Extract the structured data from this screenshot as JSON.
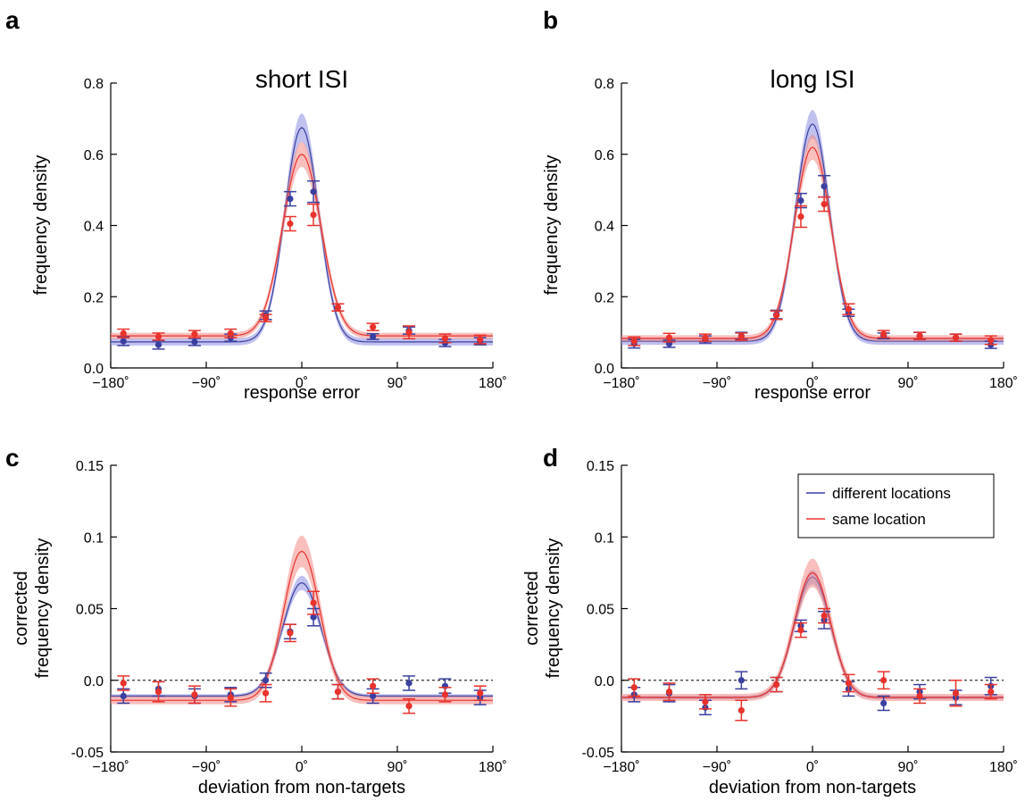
{
  "colors": {
    "blue": "#3a3fa0",
    "red": "#e8322b",
    "blue_band": "#8c8ee0",
    "red_band": "#f28a86"
  },
  "legend": {
    "items": [
      {
        "label": "different locations",
        "color": "#3a3fa0"
      },
      {
        "label": "same location",
        "color": "#e8322b"
      }
    ]
  },
  "x_tick_labels": [
    "−180˚",
    "−90˚",
    "0˚",
    "90˚",
    "180˚"
  ],
  "chart_data": [
    {
      "type": "scatter",
      "panel": "a",
      "title": "short ISI",
      "xlabel": "response error",
      "ylabel": [
        "frequency density"
      ],
      "xlim": [
        -180,
        180
      ],
      "ylim": [
        0,
        0.8
      ],
      "yticks": [
        0,
        0.2,
        0.4,
        0.6,
        0.8
      ],
      "ytick_labels": [
        "0.0",
        "0.2",
        "0.4",
        "0.6",
        "0.8"
      ],
      "x": [
        -168,
        -135,
        -101,
        -67,
        -34,
        -11,
        11,
        34,
        67,
        101,
        135,
        168
      ],
      "series": [
        {
          "name": "different locations",
          "color": "#3a3fa0",
          "values": [
            0.075,
            0.065,
            0.073,
            0.085,
            0.148,
            0.475,
            0.495,
            0.17,
            0.088,
            0.105,
            0.07,
            0.075
          ],
          "errors": [
            0.012,
            0.012,
            0.01,
            0.01,
            0.012,
            0.02,
            0.03,
            0.01,
            0.008,
            0.01,
            0.01,
            0.01
          ],
          "curve": {
            "peak": 0.675,
            "baseline": 0.073,
            "sigma": 16,
            "band": 0.04
          }
        },
        {
          "name": "same location",
          "color": "#e8322b",
          "values": [
            0.097,
            0.088,
            0.095,
            0.097,
            0.14,
            0.405,
            0.43,
            0.17,
            0.115,
            0.1,
            0.083,
            0.08
          ],
          "errors": [
            0.012,
            0.01,
            0.01,
            0.012,
            0.01,
            0.02,
            0.03,
            0.01,
            0.01,
            0.018,
            0.012,
            0.012
          ],
          "curve": {
            "peak": 0.6,
            "baseline": 0.09,
            "sigma": 18,
            "band": 0.035
          }
        }
      ]
    },
    {
      "type": "scatter",
      "panel": "b",
      "title": "long ISI",
      "xlabel": "response error",
      "ylabel": [
        "frequency density"
      ],
      "xlim": [
        -180,
        180
      ],
      "ylim": [
        0,
        0.8
      ],
      "yticks": [
        0,
        0.2,
        0.4,
        0.6,
        0.8
      ],
      "ytick_labels": [
        "0.0",
        "0.2",
        "0.4",
        "0.6",
        "0.8"
      ],
      "x": [
        -168,
        -135,
        -101,
        -67,
        -34,
        -11,
        11,
        34,
        67,
        101,
        135,
        168
      ],
      "series": [
        {
          "name": "different locations",
          "color": "#3a3fa0",
          "values": [
            0.068,
            0.068,
            0.08,
            0.09,
            0.15,
            0.47,
            0.51,
            0.155,
            0.09,
            0.09,
            0.085,
            0.065
          ],
          "errors": [
            0.012,
            0.01,
            0.01,
            0.01,
            0.012,
            0.02,
            0.03,
            0.01,
            0.008,
            0.01,
            0.01,
            0.01
          ],
          "curve": {
            "peak": 0.685,
            "baseline": 0.075,
            "sigma": 16,
            "band": 0.04
          }
        },
        {
          "name": "same location",
          "color": "#e8322b",
          "values": [
            0.075,
            0.085,
            0.085,
            0.088,
            0.148,
            0.425,
            0.46,
            0.165,
            0.095,
            0.09,
            0.085,
            0.078
          ],
          "errors": [
            0.012,
            0.012,
            0.01,
            0.01,
            0.012,
            0.03,
            0.02,
            0.015,
            0.01,
            0.01,
            0.01,
            0.012
          ],
          "curve": {
            "peak": 0.62,
            "baseline": 0.083,
            "sigma": 17,
            "band": 0.035
          }
        }
      ]
    },
    {
      "type": "scatter",
      "panel": "c",
      "title": "",
      "xlabel": "deviation from non-targets",
      "ylabel": [
        "corrected",
        "frequency density"
      ],
      "xlim": [
        -180,
        180
      ],
      "ylim": [
        -0.05,
        0.15
      ],
      "yticks": [
        -0.05,
        0,
        0.05,
        0.1,
        0.15
      ],
      "ytick_labels": [
        "-0.05",
        "0.0",
        "0.05",
        "0.1",
        "0.15"
      ],
      "zero_line": true,
      "x": [
        -168,
        -135,
        -101,
        -67,
        -34,
        -11,
        11,
        34,
        67,
        101,
        135,
        168
      ],
      "series": [
        {
          "name": "different locations",
          "color": "#3a3fa0",
          "values": [
            -0.011,
            -0.006,
            -0.011,
            -0.01,
            0.0,
            0.034,
            0.044,
            -0.008,
            -0.011,
            -0.002,
            -0.004,
            -0.012
          ],
          "errors": [
            0.005,
            0.005,
            0.005,
            0.005,
            0.005,
            0.005,
            0.006,
            0.005,
            0.005,
            0.005,
            0.005,
            0.005
          ],
          "curve": {
            "peak": 0.068,
            "baseline": -0.011,
            "sigma": 18,
            "band": 0.005
          }
        },
        {
          "name": "same location",
          "color": "#e8322b",
          "values": [
            -0.002,
            -0.008,
            -0.01,
            -0.012,
            -0.009,
            0.033,
            0.054,
            -0.008,
            -0.004,
            -0.018,
            -0.01,
            -0.009
          ],
          "errors": [
            0.005,
            0.007,
            0.006,
            0.006,
            0.006,
            0.006,
            0.008,
            0.005,
            0.005,
            0.005,
            0.005,
            0.005
          ],
          "curve": {
            "peak": 0.09,
            "baseline": -0.014,
            "sigma": 17,
            "band": 0.011
          }
        }
      ]
    },
    {
      "type": "scatter",
      "panel": "d",
      "title": "",
      "xlabel": "deviation from non-targets",
      "ylabel": [
        "corrected",
        "frequency density"
      ],
      "xlim": [
        -180,
        180
      ],
      "ylim": [
        -0.05,
        0.15
      ],
      "yticks": [
        -0.05,
        0,
        0.05,
        0.1,
        0.15
      ],
      "ytick_labels": [
        "-0.05",
        "0.0",
        "0.05",
        "0.1",
        "0.15"
      ],
      "zero_line": true,
      "legend_position": "top-right",
      "x": [
        -168,
        -135,
        -101,
        -67,
        -34,
        -11,
        11,
        34,
        67,
        101,
        135,
        168
      ],
      "series": [
        {
          "name": "different locations",
          "color": "#3a3fa0",
          "values": [
            -0.01,
            -0.009,
            -0.019,
            0.0,
            -0.003,
            0.038,
            0.042,
            -0.006,
            -0.016,
            -0.008,
            -0.012,
            -0.004
          ],
          "errors": [
            0.005,
            0.006,
            0.005,
            0.006,
            0.005,
            0.004,
            0.006,
            0.005,
            0.005,
            0.005,
            0.005,
            0.006
          ],
          "curve": {
            "peak": 0.072,
            "baseline": -0.012,
            "sigma": 17,
            "band": 0.005
          }
        },
        {
          "name": "same location",
          "color": "#e8322b",
          "values": [
            -0.005,
            -0.008,
            -0.015,
            -0.021,
            -0.003,
            0.035,
            0.045,
            -0.002,
            0.0,
            -0.011,
            -0.009,
            -0.008
          ],
          "errors": [
            0.006,
            0.006,
            0.005,
            0.007,
            0.005,
            0.005,
            0.005,
            0.006,
            0.006,
            0.005,
            0.009,
            0.005
          ],
          "curve": {
            "peak": 0.075,
            "baseline": -0.012,
            "sigma": 17,
            "band": 0.01
          }
        }
      ]
    }
  ]
}
